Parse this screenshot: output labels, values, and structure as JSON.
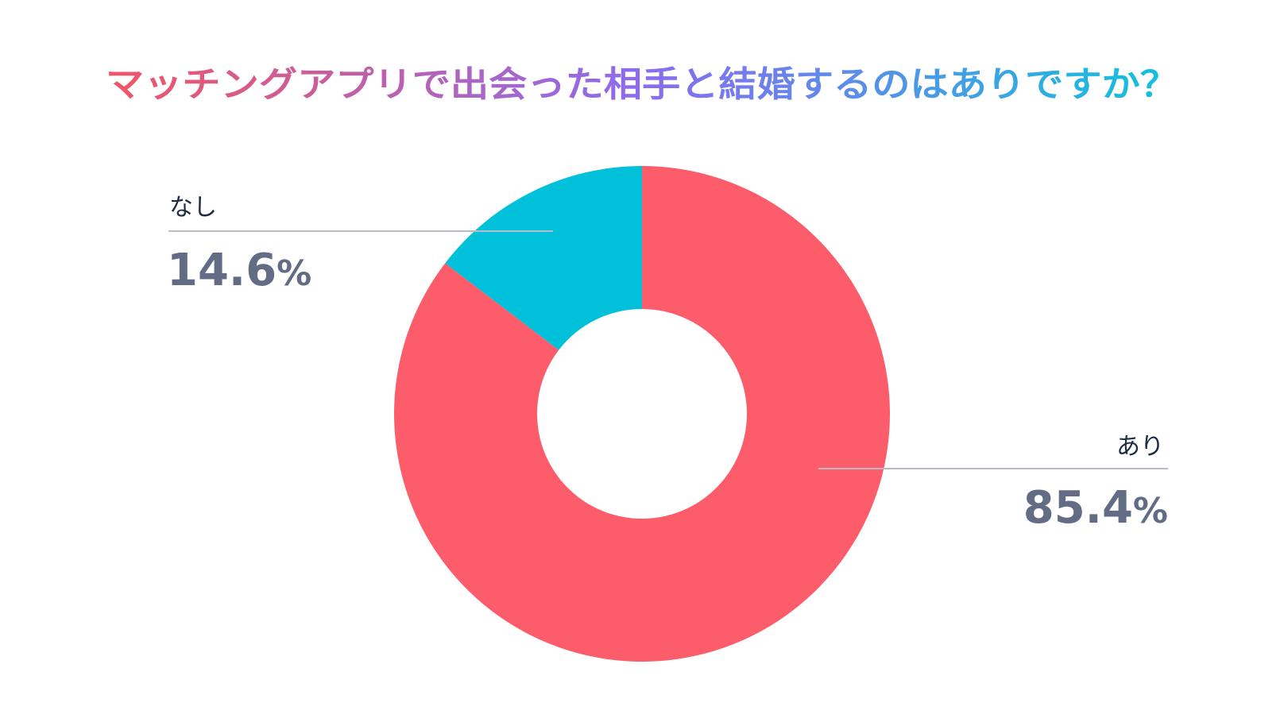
{
  "chart_data": {
    "type": "pie",
    "title": "マッチングアプリで出会った相手と結婚するのはありですか？",
    "categories": [
      "あり",
      "なし"
    ],
    "values": [
      85.4,
      14.6
    ],
    "unit": "%",
    "value_labels": [
      "85.4",
      "14.6"
    ],
    "colors": [
      "#fd5c6b",
      "#01c0da"
    ],
    "donut": true,
    "title_gradient": [
      "#f25565",
      "#8b6cf0",
      "#0fc3dc"
    ],
    "label_colors": {
      "category": "#1e2a44",
      "value": "#626c85",
      "leader": "#b7bcc6"
    }
  }
}
